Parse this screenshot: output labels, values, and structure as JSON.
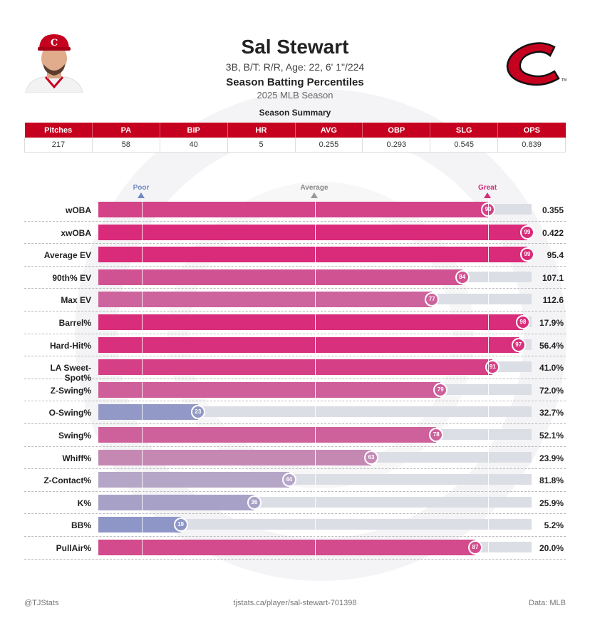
{
  "header": {
    "player_name": "Sal Stewart",
    "player_info": "3B, B/T: R/R, Age: 22, 6' 1\"/224",
    "report_title": "Season Batting Percentiles",
    "season": "2025 MLB Season",
    "summary_title": "Season Summary"
  },
  "summary": {
    "columns": [
      "Pitches",
      "PA",
      "BIP",
      "HR",
      "AVG",
      "OBP",
      "SLG",
      "OPS"
    ],
    "values": [
      "217",
      "58",
      "40",
      "5",
      "0.255",
      "0.293",
      "0.545",
      "0.839"
    ]
  },
  "markers": {
    "poor": "Poor",
    "average": "Average",
    "great": "Great"
  },
  "colors": {
    "brand": "#c6011f",
    "great": "#d12f7a",
    "poor": "#6f8ac4",
    "track": "#dcdee5"
  },
  "chart_data": {
    "type": "bar",
    "orientation": "horizontal",
    "title": "Season Batting Percentiles",
    "xlim": [
      0,
      100
    ],
    "reference_lines": [
      10,
      50,
      90
    ],
    "categories": [
      "wOBA",
      "xwOBA",
      "Average EV",
      "90th% EV",
      "Max EV",
      "Barrel%",
      "Hard-Hit%",
      "LA Sweet-Spot%",
      "Z-Swing%",
      "O-Swing%",
      "Swing%",
      "Whiff%",
      "Z-Contact%",
      "K%",
      "BB%",
      "PullAir%"
    ],
    "percentiles": [
      90,
      99,
      99,
      84,
      77,
      98,
      97,
      91,
      79,
      23,
      78,
      63,
      44,
      36,
      19,
      87
    ],
    "stat_values": [
      "0.355",
      "0.422",
      "95.4",
      "107.1",
      "112.6",
      "17.9%",
      "56.4%",
      "41.0%",
      "72.0%",
      "32.7%",
      "52.1%",
      "23.9%",
      "81.8%",
      "25.9%",
      "5.2%",
      "20.0%"
    ]
  },
  "footer": {
    "left": "@TJStats",
    "center": "tjstats.ca/player/sal-stewart-701398",
    "right": "Data: MLB"
  }
}
